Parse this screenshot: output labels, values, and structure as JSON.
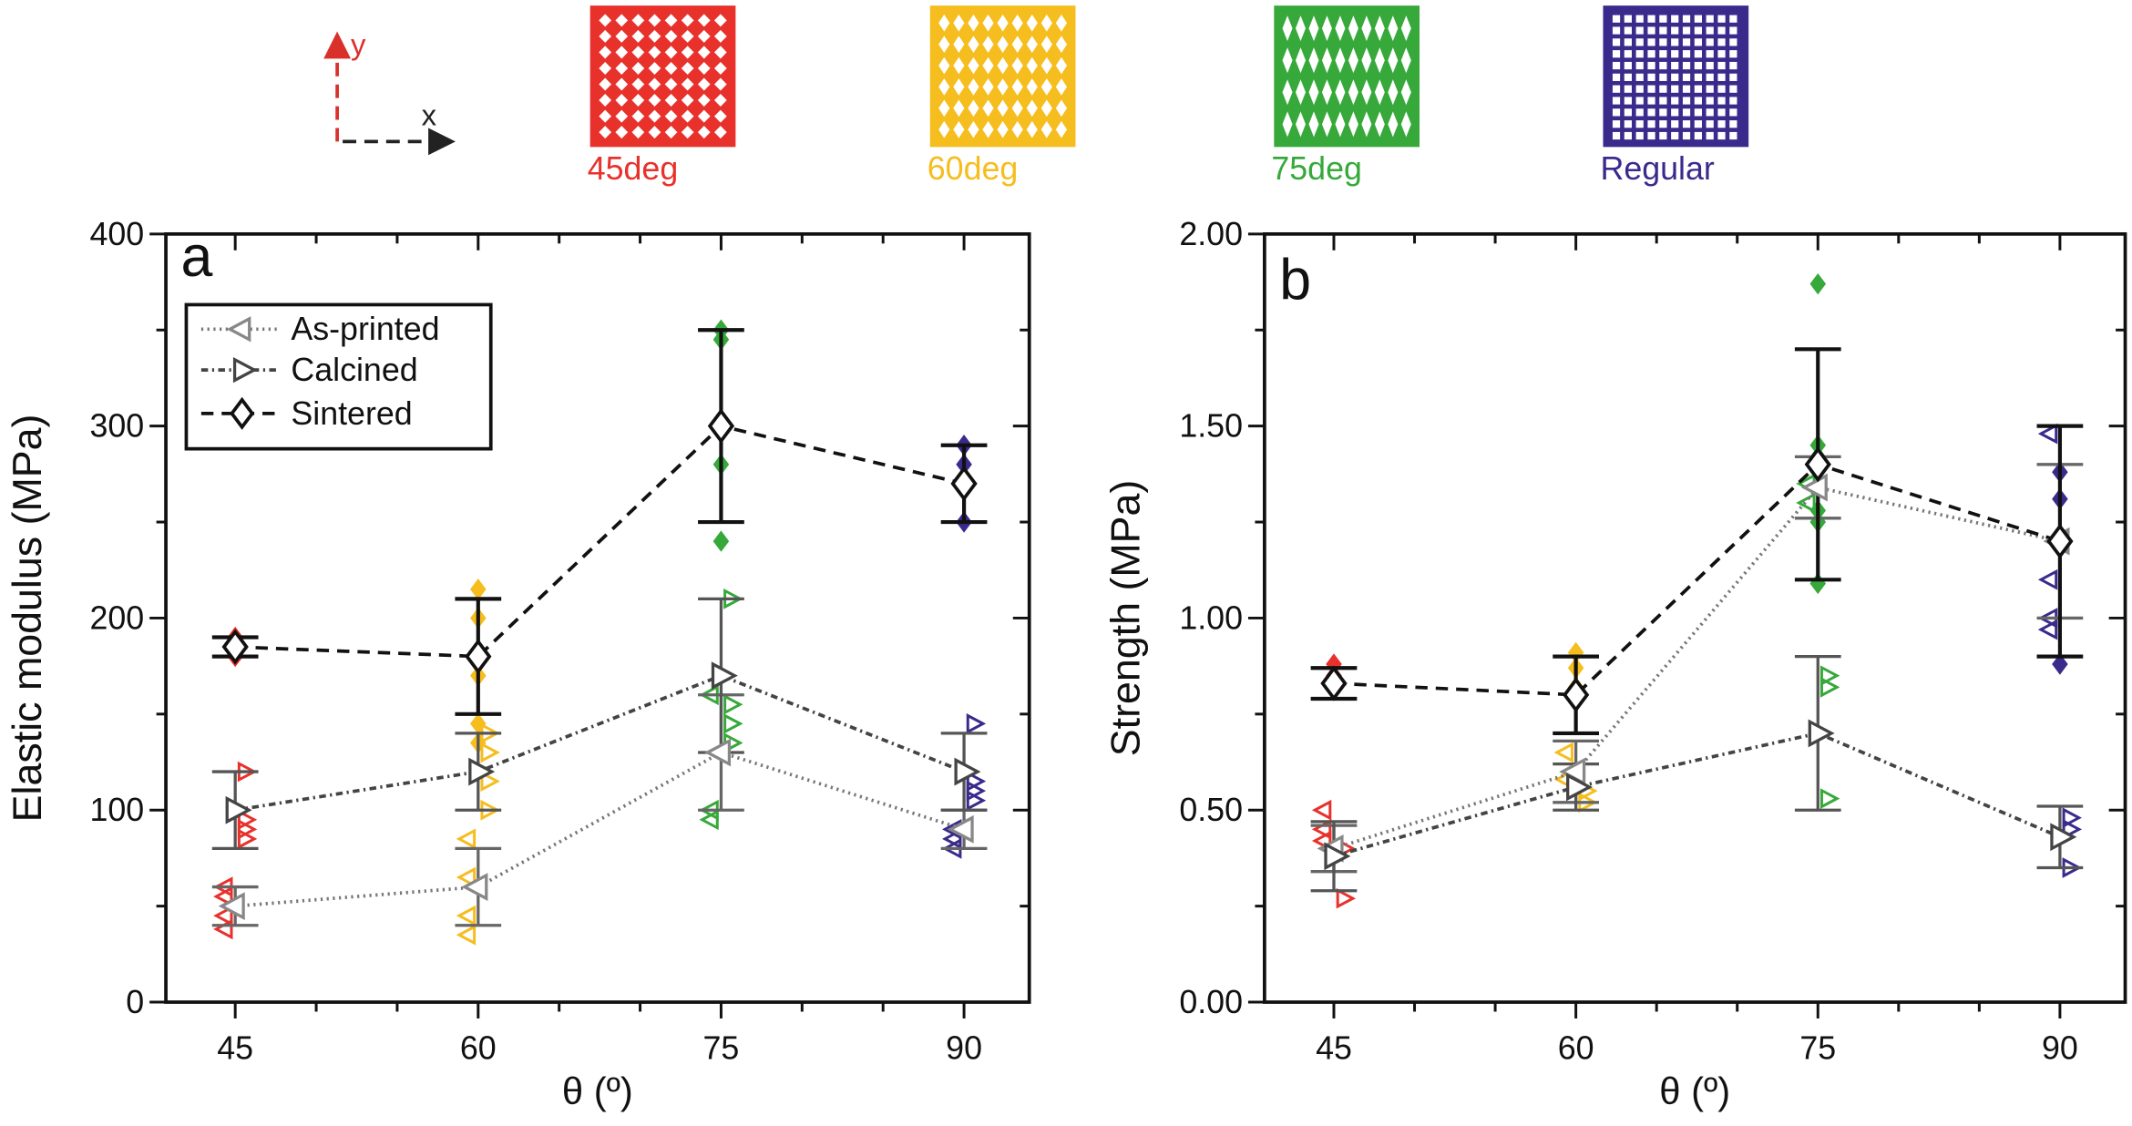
{
  "legend_top": {
    "axis_x": "x",
    "axis_y": "y",
    "patterns": [
      {
        "label": "45deg",
        "color": "#e8312b",
        "kind": "diamond45"
      },
      {
        "label": "60deg",
        "color": "#f6bd1e",
        "kind": "diamond60"
      },
      {
        "label": "75deg",
        "color": "#36a93a",
        "kind": "diamond75"
      },
      {
        "label": "Regular",
        "color": "#3a2a8c",
        "kind": "grid"
      }
    ]
  },
  "series_legend": [
    "As-printed",
    "Calcined",
    "Sintered"
  ],
  "chart_data": [
    {
      "type": "scatter",
      "panel": "a",
      "xlabel": "θ (º)",
      "ylabel": "Elastic modulus (MPa)",
      "x": [
        45,
        60,
        75,
        90
      ],
      "xticks": [
        "45",
        "60",
        "75",
        "90"
      ],
      "ylim": [
        0,
        400
      ],
      "yticks": [
        "0",
        "100",
        "200",
        "300",
        "400"
      ],
      "ytick_values": [
        0,
        100,
        200,
        300,
        400
      ],
      "series": [
        {
          "name": "As-printed",
          "values": [
            50,
            60,
            130,
            90
          ],
          "err_low": [
            40,
            40,
            100,
            80
          ],
          "err_high": [
            60,
            80,
            160,
            100
          ]
        },
        {
          "name": "Calcined",
          "values": [
            100,
            120,
            170,
            120
          ],
          "err_low": [
            80,
            100,
            130,
            100
          ],
          "err_high": [
            120,
            140,
            210,
            140
          ]
        },
        {
          "name": "Sintered",
          "values": [
            185,
            180,
            300,
            270
          ],
          "err_low": [
            180,
            150,
            250,
            250
          ],
          "err_high": [
            190,
            210,
            350,
            290
          ]
        }
      ],
      "samples": {
        "Sintered": [
          [
            180,
            190
          ],
          [
            215,
            200,
            170,
            145,
            135
          ],
          [
            350,
            345,
            280,
            240
          ],
          [
            290,
            280,
            250
          ]
        ],
        "Calcined": [
          [
            85,
            90,
            95,
            120
          ],
          [
            100,
            115,
            130,
            140
          ],
          [
            210,
            145,
            135,
            155
          ],
          [
            145,
            110,
            105,
            115
          ]
        ],
        "As-printed": [
          [
            38,
            45,
            55,
            60
          ],
          [
            35,
            45,
            65,
            85
          ],
          [
            95,
            100,
            160
          ],
          [
            80,
            85,
            90
          ]
        ]
      }
    },
    {
      "type": "scatter",
      "panel": "b",
      "xlabel": "θ (º)",
      "ylabel": "Strength (MPa)",
      "x": [
        45,
        60,
        75,
        90
      ],
      "xticks": [
        "45",
        "60",
        "75",
        "90"
      ],
      "ylim": [
        0,
        2
      ],
      "yticks": [
        "0.00",
        "0.50",
        "1.00",
        "1.50",
        "2.00"
      ],
      "ytick_values": [
        0,
        0.5,
        1,
        1.5,
        2
      ],
      "series": [
        {
          "name": "As-printed",
          "values": [
            0.4,
            0.6,
            1.34,
            1.2
          ],
          "err_low": [
            0.34,
            0.52,
            1.26,
            1.0
          ],
          "err_high": [
            0.46,
            0.68,
            1.42,
            1.4
          ]
        },
        {
          "name": "Calcined",
          "values": [
            0.38,
            0.56,
            0.7,
            0.43
          ],
          "err_low": [
            0.29,
            0.5,
            0.5,
            0.35
          ],
          "err_high": [
            0.47,
            0.62,
            0.9,
            0.51
          ]
        },
        {
          "name": "Sintered",
          "values": [
            0.83,
            0.8,
            1.4,
            1.2
          ],
          "err_low": [
            0.79,
            0.7,
            1.1,
            0.9
          ],
          "err_high": [
            0.87,
            0.9,
            1.7,
            1.5
          ]
        }
      ],
      "samples": {
        "Sintered": [
          [
            0.88,
            0.85
          ],
          [
            0.91,
            0.87,
            0.82
          ],
          [
            1.87,
            1.45,
            1.42,
            1.28,
            1.25,
            1.09
          ],
          [
            1.38,
            1.31,
            0.88
          ]
        ],
        "Calcined": [
          [
            0.27,
            0.4
          ],
          [
            0.52,
            0.55
          ],
          [
            0.85,
            0.82,
            0.53
          ],
          [
            0.48,
            0.45,
            0.35
          ]
        ],
        "As-printed": [
          [
            0.5,
            0.45,
            0.42
          ],
          [
            0.58,
            0.65
          ],
          [
            1.35,
            1.3
          ],
          [
            1.48,
            1.1,
            1.0,
            0.97
          ]
        ]
      }
    }
  ]
}
